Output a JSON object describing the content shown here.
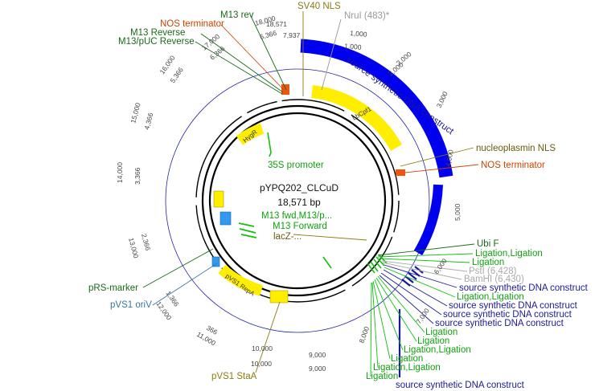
{
  "plasmid": {
    "name": "pYPQ202_CLCuD",
    "size": "18,571 bp"
  },
  "colors": {
    "feature_yellow": "#ffff00",
    "construct_blue": "#0000ee",
    "promoter_green": "#10c010",
    "terminator_orange": "#ee5510",
    "origin_blue": "#3399ee",
    "label_darkgreen": "#1a6a1a",
    "label_olive": "#8a7a10",
    "label_gray": "#999999",
    "label_navy": "#1a1a99"
  },
  "outer_ticks": {
    "top": [
      "18,571",
      "1,000"
    ],
    "outer": [
      "1,000",
      "2,000",
      "3,000",
      "4,000",
      "5,000",
      "6,000",
      "7,000",
      "8,000",
      "9,000",
      "10,000",
      "11,000",
      "12,000",
      "13,000",
      "14,000",
      "15,000",
      "16,000",
      "17,000",
      "18,000"
    ],
    "inner": [
      "7,937",
      "6,366",
      "5,366",
      "4,366",
      "3,366",
      "2,366",
      "1,366",
      "366"
    ],
    "misc": [
      "1,000",
      "10,000",
      "9,000",
      "8,000",
      "6,000"
    ]
  },
  "feature_labels": {
    "lbcpf1": "LbCpf1",
    "hygr": "HygR",
    "repa": "pVS1 RepA",
    "staa": "",
    "oriv": "",
    "vs1": ""
  },
  "annotations": {
    "sv40_nls": "SV40 NLS",
    "nrui": "NruI (483)*",
    "m13_rev": "M13 rev",
    "nos_term_top": "NOS terminator",
    "m13_reverse": "M13 Reverse",
    "m13puc_reverse": "M13/pUC Reverse",
    "construct_ring": "source synthetic DNA construct",
    "nucleoplasmin": "nucleoplasmin NLS",
    "nos_term_right": "NOS terminator",
    "promoter_35s": "35S promoter",
    "m13fwd": "M13 fwd,M13/p...",
    "m13forward": "M13 Forward",
    "lacz": "lacZ-...",
    "ubi": "Ubi F",
    "ligation1": "Ligation,Ligation",
    "ligation2": "Ligation",
    "psti": "PstI (6,428)",
    "bamhi": "BamHI (6,430)",
    "construct2": "source synthetic DNA construct",
    "ligation3": "Ligation,Ligation",
    "construct3": "source synthetic DNA construct",
    "construct4": "source synthetic DNA construct",
    "construct5": "source synthetic DNA construct",
    "ligation4": "Ligation",
    "ligation5": "Ligation",
    "ligation6": "Ligation,Ligation",
    "ligation7": "Ligation",
    "ligation8": "Ligation,Ligation",
    "ligation9": "Ligation",
    "construct6": "source synthetic DNA construct",
    "prs_marker": "pRS-marker",
    "pvs1_oriv": "pVS1 oriV",
    "pvs1_staa": "pVS1 StaA"
  }
}
